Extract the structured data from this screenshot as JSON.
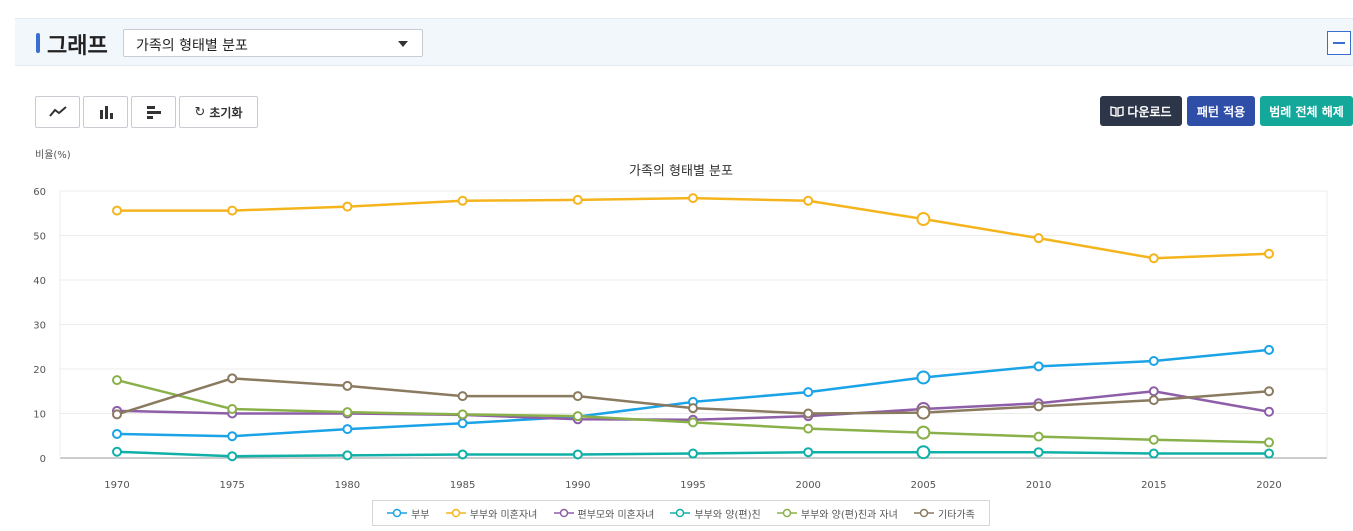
{
  "header": {
    "title": "그래프",
    "select_value": "가족의 형태별 분포",
    "accent_color": "#3a6fd0"
  },
  "toolbar": {
    "line_icon": "line-chart-icon",
    "bar_icon": "bar-chart-icon",
    "hbar_icon": "horizontal-bar-chart-icon",
    "reset_label": "초기화",
    "download_label": "다운로드",
    "pattern_label": "패턴 적용",
    "legend_off_label": "범례 전체 해제"
  },
  "chart_data": {
    "type": "line",
    "title": "가족의 형태별 분포",
    "ylabel": "비율(%)",
    "xlabel": "",
    "ylim": [
      0,
      60
    ],
    "yticks": [
      0,
      10,
      20,
      30,
      40,
      50,
      60
    ],
    "categories": [
      "1970",
      "1975",
      "1980",
      "1985",
      "1990",
      "1995",
      "2000",
      "2005",
      "2010",
      "2015",
      "2020"
    ],
    "highlight_index": 7,
    "legend_position": "bottom",
    "series": [
      {
        "name": "부부",
        "color": "#1ba3e8",
        "values": [
          5.4,
          4.9,
          6.5,
          7.8,
          9.3,
          12.6,
          14.8,
          18.1,
          20.6,
          21.8,
          24.3
        ]
      },
      {
        "name": "부부와 미혼자녀",
        "color": "#f5b41e",
        "values": [
          55.6,
          55.6,
          56.5,
          57.8,
          58.0,
          58.4,
          57.8,
          53.7,
          49.4,
          44.9,
          45.9
        ]
      },
      {
        "name": "편부모와 미혼자녀",
        "color": "#8e5ea8",
        "values": [
          10.6,
          10.0,
          10.0,
          9.7,
          8.7,
          8.6,
          9.4,
          11.0,
          12.3,
          15.0,
          10.4
        ]
      },
      {
        "name": "부부와 양(편)친",
        "color": "#10b0a8",
        "values": [
          1.4,
          0.4,
          0.6,
          0.8,
          0.8,
          1.0,
          1.3,
          1.3,
          1.3,
          1.0,
          1.0
        ]
      },
      {
        "name": "부부와 양(편)친과 자녀",
        "color": "#8ab04a",
        "values": [
          17.5,
          11.0,
          10.3,
          9.8,
          9.4,
          8.0,
          6.6,
          5.7,
          4.8,
          4.1,
          3.5
        ]
      },
      {
        "name": "기타가족",
        "color": "#8a7a60",
        "values": [
          9.8,
          17.9,
          16.2,
          13.9,
          13.9,
          11.2,
          10.0,
          10.2,
          11.6,
          13.0,
          15.0
        ]
      }
    ]
  }
}
